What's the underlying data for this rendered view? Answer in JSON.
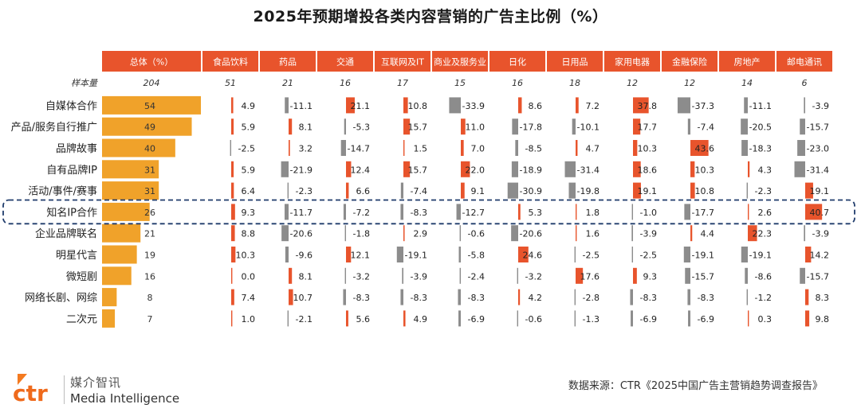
{
  "title": "2025年预期增投各类内容营销的广告主比例（%）",
  "sample_label": "样本量",
  "highlight_row": "知名IP合作",
  "colors": {
    "header_bg": "#e8542c",
    "total_bar": "#f0a22a",
    "positive_bar": "#e8542c",
    "negative_bar": "#8c8c8c",
    "highlight_border": "#1f3b6b"
  },
  "chart_data": {
    "type": "bar",
    "columns": [
      "总体（%）",
      "食品饮料",
      "药品",
      "交通",
      "互联网及IT",
      "商业及服务业",
      "日化",
      "日用品",
      "家用电器",
      "金融保险",
      "房地产",
      "邮电通讯"
    ],
    "sample_sizes": [
      "204",
      "51",
      "21",
      "16",
      "17",
      "15",
      "16",
      "18",
      "12",
      "12",
      "14",
      "6"
    ],
    "categories": [
      "自媒体合作",
      "产品/服务自行推广",
      "品牌故事",
      "自有品牌IP",
      "活动/事件/赛事",
      "知名IP合作",
      "企业品牌联名",
      "明星代言",
      "微短剧",
      "网络长剧、网综",
      "二次元"
    ],
    "total": [
      54,
      49,
      40,
      31,
      31,
      26,
      21,
      19,
      16,
      8,
      7
    ],
    "series": [
      {
        "name": "食品饮料",
        "values": [
          4.9,
          5.9,
          -2.5,
          5.9,
          6.4,
          9.3,
          8.8,
          10.3,
          0.0,
          7.4,
          1.0
        ]
      },
      {
        "name": "药品",
        "values": [
          -11.1,
          8.1,
          3.2,
          -21.9,
          -2.3,
          -11.7,
          -20.6,
          -9.6,
          8.1,
          10.7,
          -2.1
        ]
      },
      {
        "name": "交通",
        "values": [
          21.1,
          -5.3,
          -14.7,
          12.4,
          6.6,
          -7.2,
          -1.8,
          12.1,
          -3.2,
          -8.3,
          5.6
        ]
      },
      {
        "name": "互联网及IT",
        "values": [
          10.8,
          15.7,
          1.5,
          15.7,
          -7.4,
          -8.3,
          2.9,
          -19.1,
          -3.9,
          -8.3,
          4.9
        ]
      },
      {
        "name": "商业及服务业",
        "values": [
          -33.9,
          11.0,
          7.0,
          22.0,
          9.1,
          -12.7,
          -0.6,
          -5.8,
          -2.4,
          -8.3,
          -6.9
        ]
      },
      {
        "name": "日化",
        "values": [
          8.6,
          -17.8,
          -8.5,
          -18.9,
          -30.9,
          5.3,
          -20.6,
          24.6,
          -3.2,
          4.2,
          -0.6
        ]
      },
      {
        "name": "日用品",
        "values": [
          7.2,
          -10.1,
          4.7,
          -31.4,
          -19.8,
          1.8,
          1.6,
          -2.5,
          17.6,
          -2.8,
          -1.3
        ]
      },
      {
        "name": "家用电器",
        "values": [
          37.8,
          17.7,
          10.3,
          18.6,
          19.1,
          -1.0,
          -3.9,
          -2.5,
          9.3,
          -8.3,
          -6.9
        ]
      },
      {
        "name": "金融保险",
        "values": [
          -37.3,
          -7.4,
          43.6,
          10.3,
          10.8,
          -17.7,
          4.4,
          -19.1,
          -15.7,
          -8.3,
          -6.9
        ]
      },
      {
        "name": "房地产",
        "values": [
          -11.1,
          -20.5,
          -18.3,
          4.3,
          -2.3,
          2.6,
          22.3,
          -19.1,
          -8.6,
          -1.2,
          0.3
        ]
      },
      {
        "name": "邮电通讯",
        "values": [
          -3.9,
          -15.7,
          -23.0,
          -31.4,
          19.1,
          40.7,
          -3.9,
          14.2,
          -15.7,
          8.3,
          9.8
        ]
      }
    ]
  },
  "footer": {
    "source": "数据来源：CTR《2025中国广告主营销趋势调查报告》",
    "logo_mark": "ctr",
    "logo_cn": "媒介智讯",
    "logo_en": "Media Intelligence"
  }
}
